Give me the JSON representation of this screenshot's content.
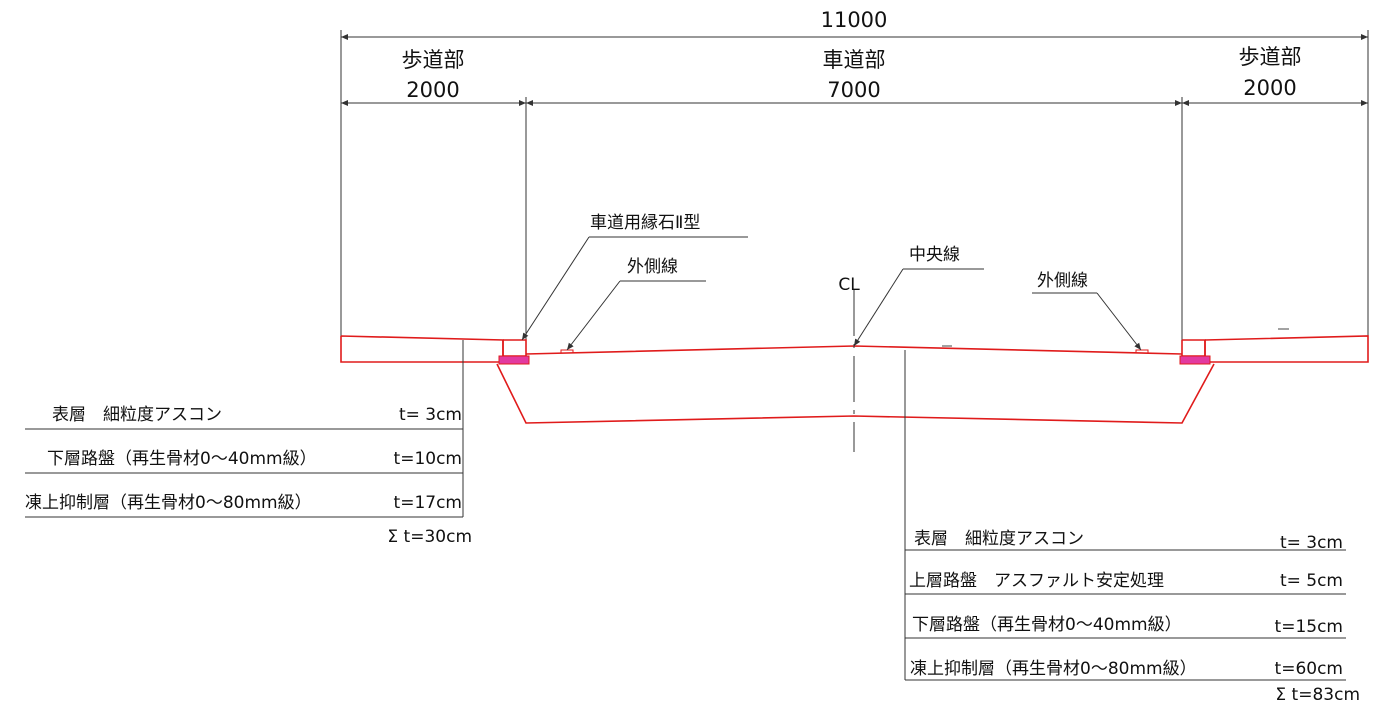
{
  "dimensions": {
    "total": "11000",
    "left_label": "歩道部",
    "left_value": "2000",
    "center_label": "車道部",
    "center_value": "7000",
    "right_label": "歩道部",
    "right_value": "2000"
  },
  "annotations": {
    "curb": "車道用縁石Ⅱ型",
    "outer_line_left": "外側線",
    "center_line": "中央線",
    "outer_line_right": "外側線",
    "centerline_mark": "CL"
  },
  "sidewalk_layers": {
    "rows": [
      {
        "name": "表層　細粒度アスコン",
        "thickness": "t= 3cm"
      },
      {
        "name": "下層路盤（再生骨材0～40mm級）",
        "thickness": "t=10cm"
      },
      {
        "name": "凍上抑制層（再生骨材0～80mm級）",
        "thickness": "t=17cm"
      }
    ],
    "total": "Σ t=30cm"
  },
  "roadway_layers": {
    "rows": [
      {
        "name": "表層　細粒度アスコン",
        "thickness": "t= 3cm"
      },
      {
        "name": "上層路盤　アスファルト安定処理",
        "thickness": "t= 5cm"
      },
      {
        "name": "下層路盤（再生骨材0～40mm級）",
        "thickness": "t=15cm"
      },
      {
        "name": "凍上抑制層（再生骨材0～80mm級）",
        "thickness": "t=60cm"
      }
    ],
    "total": "Σ t=83cm"
  },
  "colors": {
    "section_line": "#e01b1b",
    "curb_fill": "#e23aa0",
    "annotation_line": "#333333"
  }
}
